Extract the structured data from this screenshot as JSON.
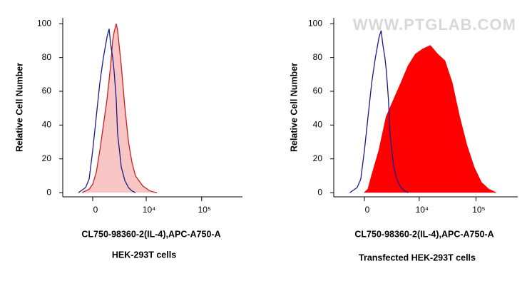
{
  "chart_data": [
    {
      "type": "area",
      "xscale": "biexponential",
      "ylabel": "Relative Cell Number",
      "xlabel": "CL750-98360-2(IL-4),APC-A750-A",
      "caption": "HEK-293T cells",
      "xlim": [
        -3500,
        540000
      ],
      "xticks": [
        0,
        {
          "value": 10000,
          "label": "10⁴"
        },
        {
          "value": 100000,
          "label": "10⁵"
        }
      ],
      "ylim": [
        -2.5,
        103.5
      ],
      "yticks": [
        0,
        20,
        40,
        60,
        80,
        100
      ],
      "series": [
        {
          "color": "#cc1f1f",
          "fill": "#f9c6c6",
          "x": [
            -1013,
            -328,
            0,
            328,
            663,
            1013,
            1386,
            1793,
            2046,
            2230,
            2508,
            2709,
            3279,
            3902,
            4611,
            5387,
            6296,
            8600,
            11640,
            15700
          ],
          "values": [
            0,
            2,
            5,
            12,
            25,
            40,
            55,
            75,
            90,
            95,
            100,
            96,
            75,
            50,
            30,
            18,
            10,
            4,
            1,
            0
          ]
        },
        {
          "color": "#1a1a8c",
          "x": [
            -1386,
            -663,
            -328,
            0,
            328,
            663,
            1013,
            1386,
            1620,
            1793,
            2046,
            2230,
            2508,
            2709,
            3279,
            3902,
            4611,
            5387,
            6296
          ],
          "values": [
            0,
            3,
            8,
            25,
            45,
            65,
            80,
            92,
            97,
            88,
            80,
            72,
            55,
            35,
            15,
            7,
            3,
            1,
            0
          ]
        }
      ]
    },
    {
      "type": "area",
      "xscale": "biexponential",
      "ylabel": "Relative Cell Number",
      "xlabel": "CL750-98360-2(IL-4),APC-A750-A",
      "caption": "Transfected HEK-293T cells",
      "watermark": "WWW.PTGLAB.COM",
      "xlim": [
        -3500,
        540000
      ],
      "xticks": [
        0,
        {
          "value": 10000,
          "label": "10⁴"
        },
        {
          "value": 100000,
          "label": "10⁵"
        }
      ],
      "ylim": [
        -2.5,
        103.5
      ],
      "yticks": [
        0,
        20,
        40,
        60,
        80,
        100
      ],
      "series": [
        {
          "color": "#ff0000",
          "fill": "#ff0000",
          "x": [
            0,
            328,
            663,
            1386,
            2230,
            3279,
            4611,
            6296,
            8600,
            11640,
            15700,
            21100,
            28400,
            38100,
            51200,
            68900,
            92500,
            124000,
            167000,
            224000
          ],
          "values": [
            0,
            2,
            10,
            25,
            45,
            55,
            65,
            75,
            82,
            85,
            87,
            82,
            78,
            65,
            45,
            28,
            15,
            6,
            2,
            0
          ]
        },
        {
          "color": "#1a1a8c",
          "x": [
            -1386,
            -663,
            -328,
            0,
            328,
            663,
            1013,
            1386,
            1620,
            1793,
            2046,
            2230,
            2508,
            2709,
            3279,
            3902,
            4611,
            5387,
            6296
          ],
          "values": [
            0,
            3,
            8,
            25,
            45,
            65,
            80,
            92,
            96,
            88,
            80,
            72,
            55,
            35,
            15,
            7,
            3,
            1,
            0
          ]
        }
      ]
    }
  ]
}
